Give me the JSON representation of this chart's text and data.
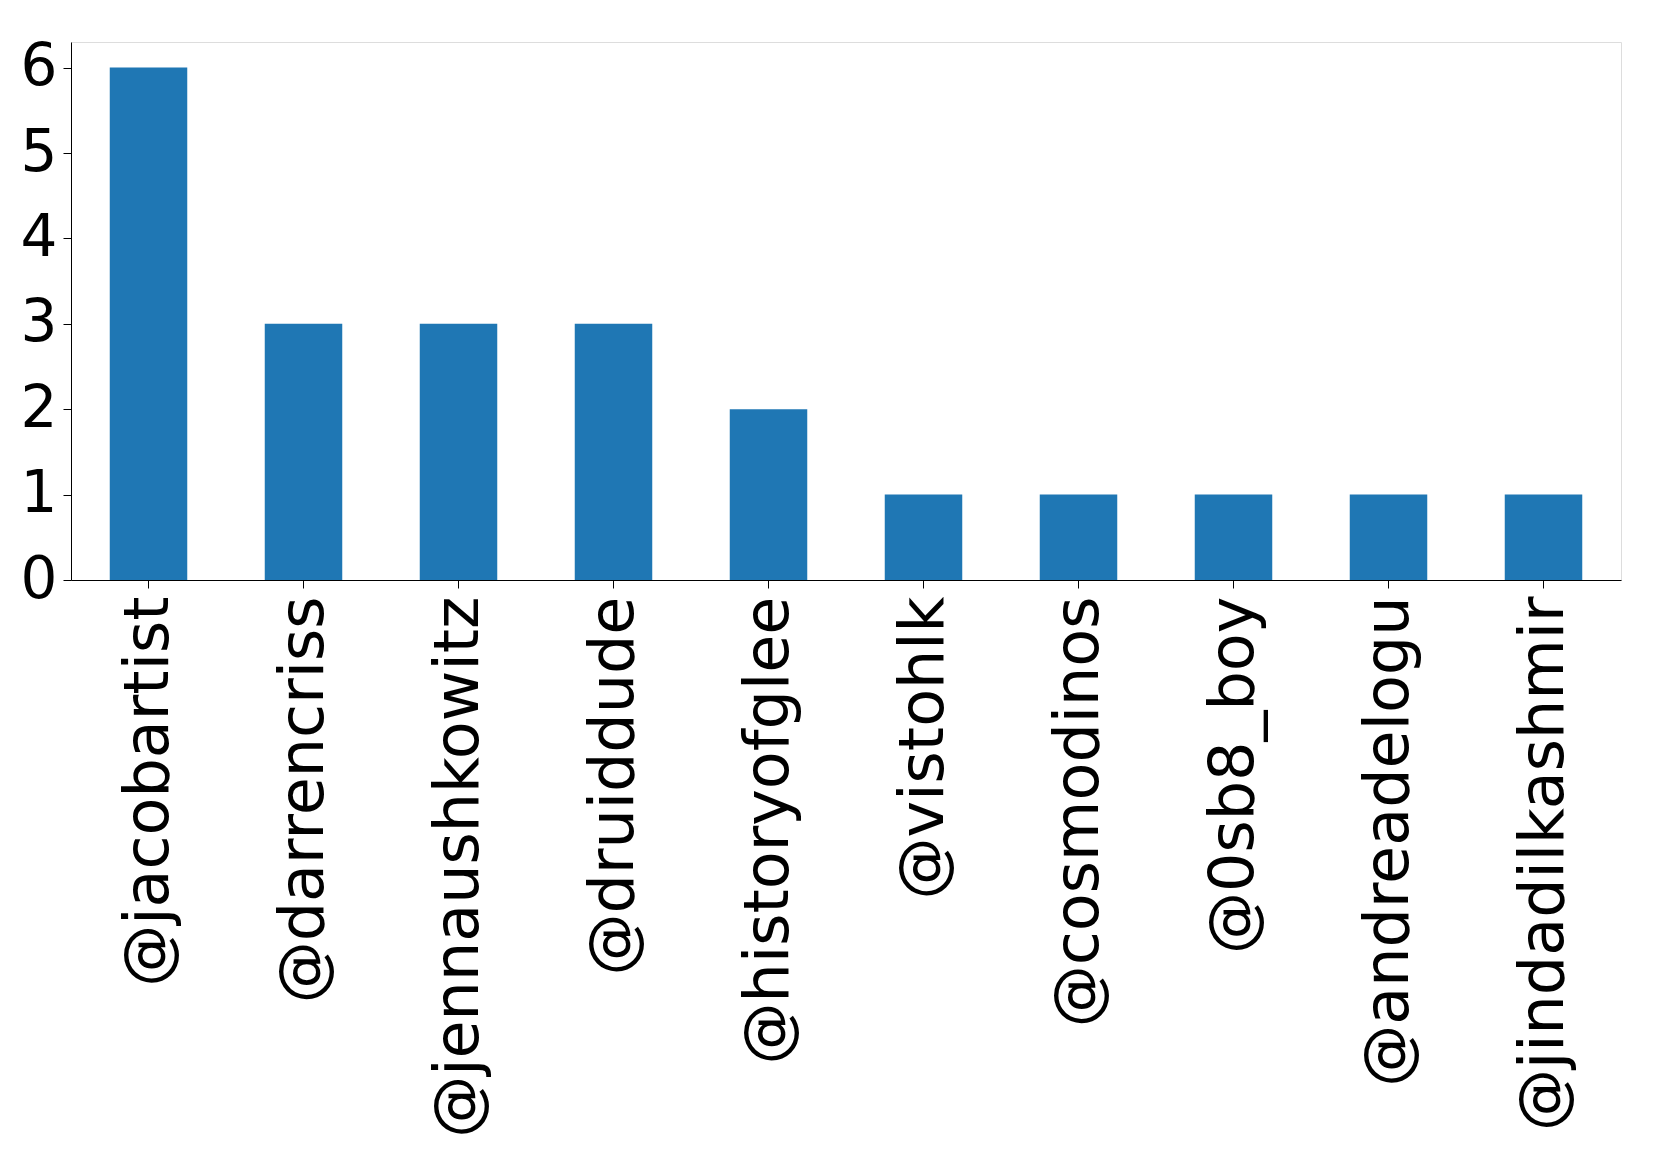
{
  "chart_data": {
    "type": "bar",
    "categories": [
      "@jacobartist",
      "@darrencriss",
      "@jennaushkowitz",
      "@druiddude",
      "@historyofglee",
      "@vistohlk",
      "@cosmodinos",
      "@0sb8_boy",
      "@andreadelogu",
      "@jindadilkashmir"
    ],
    "values": [
      6,
      3,
      3,
      3,
      2,
      1,
      1,
      1,
      1,
      1
    ],
    "color": "#1f77b4",
    "ylim": [
      0,
      6.3
    ],
    "yticks": [
      0,
      1,
      2,
      3,
      4,
      5,
      6
    ],
    "grid": false
  }
}
